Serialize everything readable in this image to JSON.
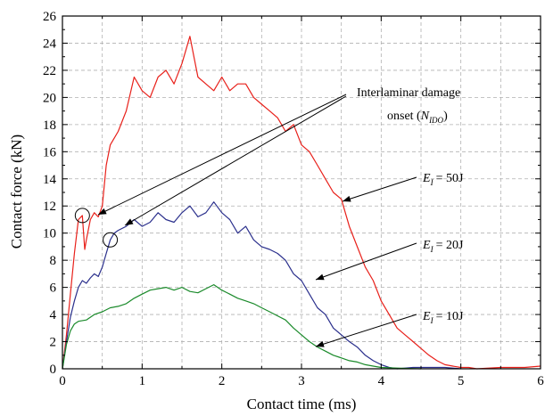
{
  "chart_data": {
    "type": "line",
    "xlabel": "Contact time (ms)",
    "ylabel": "Contact force (kN)",
    "xlim": [
      0,
      6
    ],
    "ylim": [
      0,
      26
    ],
    "xticks": [
      0,
      1,
      2,
      3,
      4,
      5,
      6
    ],
    "yticks": [
      0,
      2,
      4,
      6,
      8,
      10,
      12,
      14,
      16,
      18,
      20,
      22,
      24,
      26
    ],
    "grid": true,
    "series": [
      {
        "name": "E_I = 50J",
        "color": "#e8201a",
        "x": [
          0,
          0.05,
          0.1,
          0.15,
          0.2,
          0.25,
          0.28,
          0.3,
          0.35,
          0.4,
          0.45,
          0.5,
          0.55,
          0.6,
          0.7,
          0.8,
          0.9,
          1.0,
          1.1,
          1.2,
          1.3,
          1.4,
          1.5,
          1.6,
          1.65,
          1.7,
          1.8,
          1.9,
          2.0,
          2.1,
          2.2,
          2.3,
          2.4,
          2.5,
          2.6,
          2.7,
          2.8,
          2.9,
          3.0,
          3.1,
          3.2,
          3.3,
          3.4,
          3.5,
          3.6,
          3.7,
          3.8,
          3.9,
          4.0,
          4.1,
          4.2,
          4.3,
          4.4,
          4.5,
          4.6,
          4.7,
          4.8,
          4.9,
          5.0,
          5.1,
          5.2,
          5.5,
          5.8,
          6.0
        ],
        "y": [
          0,
          2.5,
          5.5,
          8.5,
          11.0,
          11.3,
          8.8,
          9.5,
          11.0,
          11.5,
          11.2,
          12.0,
          15.0,
          16.5,
          17.5,
          19.0,
          21.5,
          20.5,
          20.0,
          21.5,
          22.0,
          21.0,
          22.5,
          24.5,
          23.0,
          21.5,
          21.0,
          20.5,
          21.5,
          20.5,
          21.0,
          21.0,
          20.0,
          19.5,
          19.0,
          18.5,
          17.5,
          18.0,
          16.5,
          16.0,
          15.0,
          14.0,
          13.0,
          12.5,
          10.5,
          9.0,
          7.5,
          6.5,
          5.0,
          4.0,
          3.0,
          2.5,
          2.0,
          1.5,
          1.0,
          0.6,
          0.3,
          0.2,
          0.1,
          0.1,
          0.0,
          0.1,
          0.1,
          0.2
        ]
      },
      {
        "name": "E_I = 20J",
        "color": "#2a2f8c",
        "x": [
          0,
          0.05,
          0.1,
          0.15,
          0.2,
          0.25,
          0.3,
          0.35,
          0.4,
          0.45,
          0.5,
          0.55,
          0.6,
          0.65,
          0.7,
          0.8,
          0.9,
          1.0,
          1.1,
          1.2,
          1.3,
          1.4,
          1.5,
          1.6,
          1.7,
          1.8,
          1.9,
          2.0,
          2.1,
          2.2,
          2.3,
          2.4,
          2.5,
          2.6,
          2.7,
          2.8,
          2.9,
          3.0,
          3.1,
          3.2,
          3.3,
          3.4,
          3.5,
          3.6,
          3.7,
          3.8,
          3.9,
          4.0,
          4.1,
          4.2,
          4.4,
          4.6,
          4.8,
          5.0
        ],
        "y": [
          0,
          2.0,
          3.8,
          5.0,
          6.0,
          6.5,
          6.3,
          6.7,
          7.0,
          6.8,
          7.5,
          8.5,
          9.5,
          10.0,
          10.2,
          10.5,
          11.0,
          10.5,
          10.8,
          11.5,
          11.0,
          10.8,
          11.5,
          12.0,
          11.2,
          11.5,
          12.3,
          11.5,
          11.0,
          10.0,
          10.5,
          9.5,
          9.0,
          8.8,
          8.5,
          8.0,
          7.0,
          6.5,
          5.5,
          4.5,
          4.0,
          3.0,
          2.5,
          2.0,
          1.6,
          1.0,
          0.6,
          0.3,
          0.1,
          0.0,
          0.1,
          0.1,
          0.1,
          0.0
        ]
      },
      {
        "name": "E_I = 10J",
        "color": "#1a8a2a",
        "x": [
          0,
          0.05,
          0.1,
          0.15,
          0.2,
          0.3,
          0.4,
          0.5,
          0.6,
          0.7,
          0.8,
          0.9,
          1.0,
          1.1,
          1.2,
          1.3,
          1.4,
          1.5,
          1.6,
          1.7,
          1.8,
          1.9,
          2.0,
          2.1,
          2.2,
          2.3,
          2.4,
          2.5,
          2.6,
          2.7,
          2.8,
          2.9,
          3.0,
          3.1,
          3.2,
          3.3,
          3.4,
          3.5,
          3.6,
          3.7,
          3.8,
          3.9,
          4.0,
          4.2,
          4.5
        ],
        "y": [
          0,
          1.8,
          2.8,
          3.3,
          3.5,
          3.6,
          4.0,
          4.2,
          4.5,
          4.6,
          4.8,
          5.2,
          5.5,
          5.8,
          5.9,
          6.0,
          5.8,
          6.0,
          5.7,
          5.6,
          5.9,
          6.2,
          5.8,
          5.5,
          5.2,
          5.0,
          4.8,
          4.5,
          4.2,
          3.9,
          3.6,
          3.0,
          2.5,
          2.0,
          1.6,
          1.3,
          1.0,
          0.8,
          0.6,
          0.5,
          0.3,
          0.2,
          0.1,
          0.05,
          0.0
        ]
      }
    ],
    "annotations": {
      "damage_title": "Interlaminar damage",
      "damage_onset_prefix": "onset (",
      "damage_symbol": "N",
      "damage_subscript": "IDO",
      "damage_onset_suffix": ")",
      "energy_symbol": "E",
      "energy_subscript": "I",
      "label_50": "= 50J",
      "label_20": "= 20J",
      "label_10": "= 10J"
    }
  }
}
